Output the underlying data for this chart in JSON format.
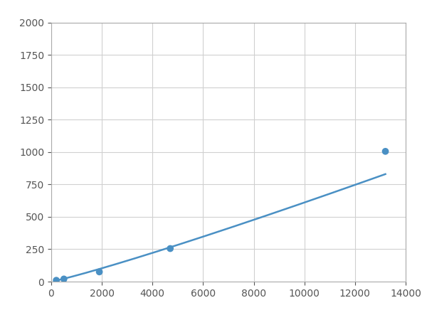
{
  "x_points": [
    200,
    500,
    1900,
    4700,
    13200
  ],
  "y_points": [
    10,
    20,
    75,
    255,
    1005
  ],
  "line_color": "#4a90c4",
  "marker_color": "#4a90c4",
  "marker_size": 7,
  "line_width": 1.8,
  "xlim": [
    0,
    14000
  ],
  "ylim": [
    0,
    2000
  ],
  "xticks": [
    0,
    2000,
    4000,
    6000,
    8000,
    10000,
    12000,
    14000
  ],
  "yticks": [
    0,
    250,
    500,
    750,
    1000,
    1250,
    1500,
    1750,
    2000
  ],
  "grid_color": "#d0d0d0",
  "background_color": "#ffffff",
  "figsize": [
    6.0,
    4.5
  ],
  "dpi": 100,
  "tick_fontsize": 10,
  "tick_color": "#555555"
}
